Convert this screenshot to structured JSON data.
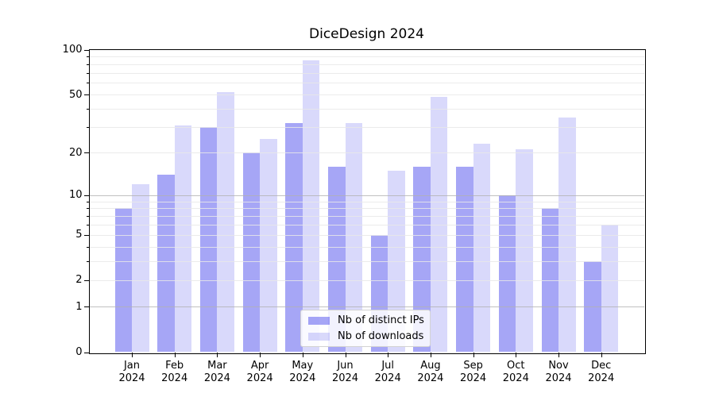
{
  "title": "DiceDesign 2024",
  "colors": {
    "ips_fill": "rgba(0,0,230,0.35)",
    "downloads_fill": "rgba(0,0,230,0.15)",
    "ips_solid": "#a6a6f4",
    "downloads_solid": "#d8d8f7",
    "grid_major": "#b2b2b2",
    "grid_minor": "#e7e7e7",
    "axis": "#000000",
    "legend_border": "#d2d2d2"
  },
  "legend": {
    "items": [
      {
        "label": "Nb of distinct IPs",
        "color_key": "ips_fill"
      },
      {
        "label": "Nb of downloads",
        "color_key": "downloads_fill"
      }
    ],
    "position": "lower center"
  },
  "chart_data": {
    "type": "bar",
    "title": "DiceDesign 2024",
    "xlabel": "",
    "ylabel": "",
    "yscale": "log1p",
    "ylim": [
      0,
      100
    ],
    "grid": true,
    "legend_position": "lower center",
    "categories": [
      "Jan 2024",
      "Feb 2024",
      "Mar 2024",
      "Apr 2024",
      "May 2024",
      "Jun 2024",
      "Jul 2024",
      "Aug 2024",
      "Sep 2024",
      "Oct 2024",
      "Nov 2024",
      "Dec 2024"
    ],
    "series": [
      {
        "name": "Nb of distinct IPs",
        "color_key": "ips_fill",
        "values": [
          8,
          14,
          30,
          20,
          32,
          16,
          5,
          16,
          16,
          10,
          8,
          3
        ]
      },
      {
        "name": "Nb of downloads",
        "color_key": "downloads_fill",
        "values": [
          12,
          31,
          52,
          25,
          85,
          32,
          15,
          48,
          23,
          21,
          35,
          6
        ]
      }
    ],
    "y_tick_labels": [
      100,
      50,
      20,
      10,
      5,
      2,
      1,
      0
    ],
    "y_major_gridlines": [
      1,
      10
    ],
    "y_minor_gridlines": [
      2,
      3,
      4,
      5,
      6,
      7,
      8,
      9,
      20,
      30,
      40,
      50,
      60,
      70,
      80,
      90
    ],
    "y_minor_ticks": [
      3,
      4,
      6,
      7,
      8,
      9,
      30,
      40,
      60,
      70,
      80,
      90
    ]
  }
}
